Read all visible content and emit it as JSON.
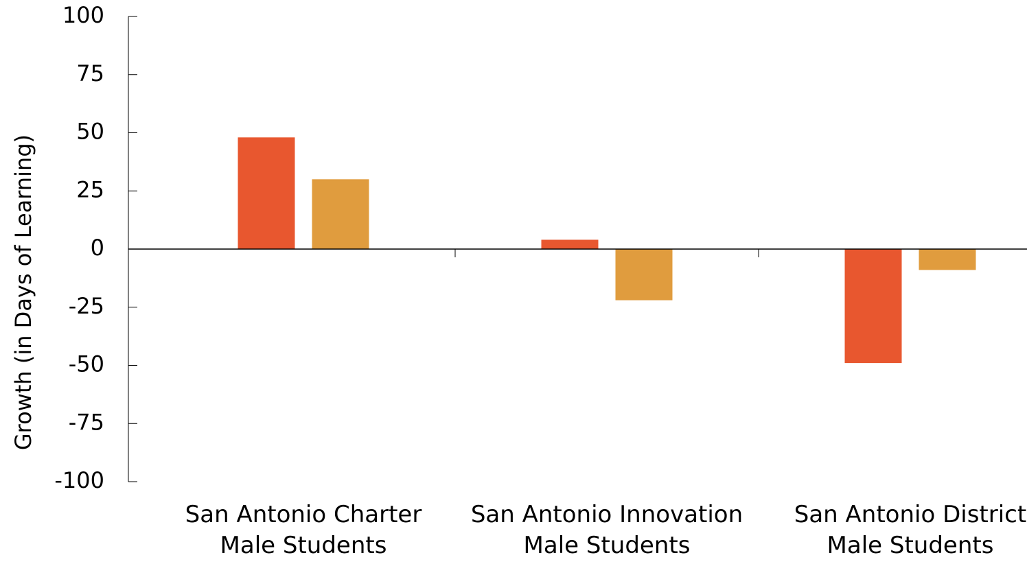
{
  "chart_data": {
    "type": "bar",
    "y_label": "Growth (in Days of Learning)",
    "categories": [
      "San Antonio Charter Male Students",
      "San Antonio Innovation Male Students",
      "San Antonio District Male Students"
    ],
    "series": [
      {
        "color": "#e8572f",
        "values": [
          48,
          4,
          -49
        ]
      },
      {
        "color": "#e09c3e",
        "values": [
          30,
          -22,
          -9
        ]
      }
    ],
    "ylim": [
      -100,
      100
    ],
    "yticks": [
      -100,
      -75,
      -50,
      -25,
      0,
      25,
      50,
      75,
      100
    ]
  }
}
